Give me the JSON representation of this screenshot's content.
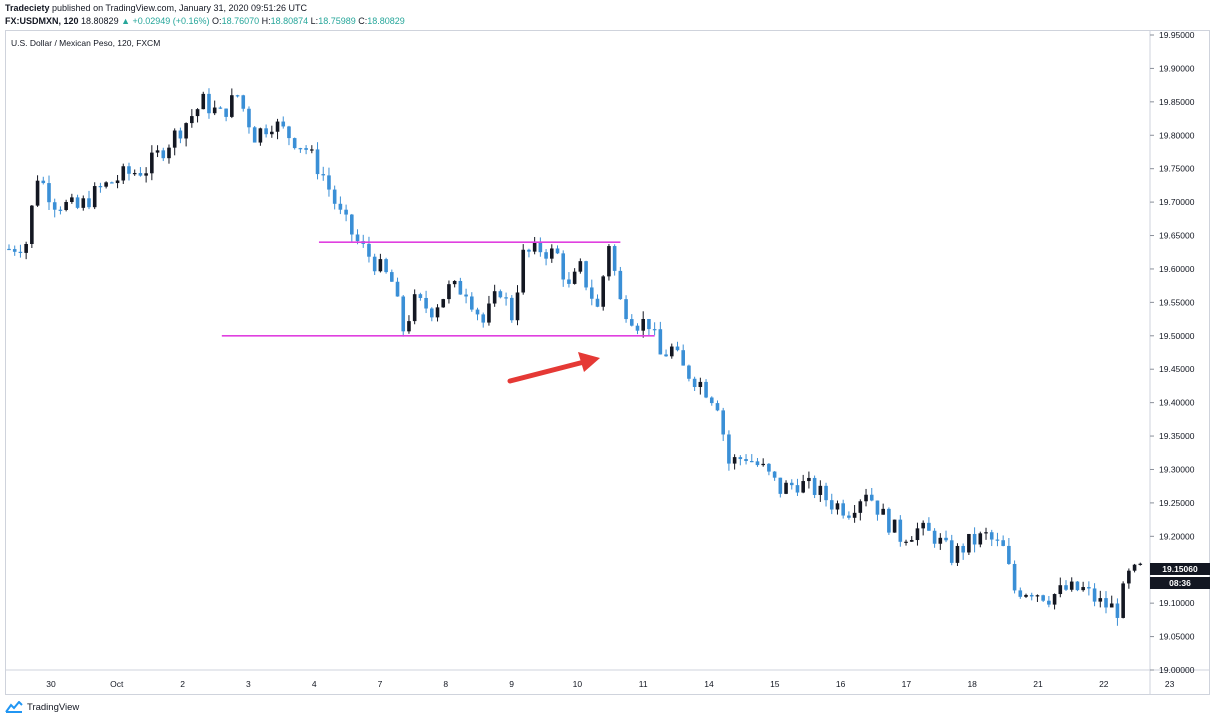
{
  "header": {
    "author": "Tradeciety",
    "published": " published on TradingView.com, January 31, 2020 09:51:26 UTC",
    "symbol": "FX:USDMXN, 120",
    "last": " 18.80829 ",
    "change": "▲ +0.02949 (+0.16%)",
    "o_label": " O:",
    "o_value": "18.76070",
    "h_label": " H:",
    "h_value": "18.80874",
    "l_label": " L:",
    "l_value": "18.75989",
    "c_label": " C:",
    "c_value": "18.80829"
  },
  "legend": "U.S. Dollar / Mexican Peso, 120, FXCM",
  "price_label": "19.15060",
  "countdown_label": "08:36",
  "footer": {
    "brand": "TradingView",
    "logo_icon": "tradingview-logo-icon"
  },
  "colors": {
    "up": "#131722",
    "down": "#3a8fd6",
    "level_line": "#e040e0",
    "arrow": "#e53935",
    "axis_text": "#131722",
    "border": "#cfd3dc"
  },
  "chart_data": {
    "type": "candlestick",
    "title": "U.S. Dollar / Mexican Peso, 120, FXCM",
    "ylim": [
      19.0,
      19.96
    ],
    "y_ticks": [
      "19.95000",
      "19.90000",
      "19.85000",
      "19.80000",
      "19.75000",
      "19.70000",
      "19.65000",
      "19.60000",
      "19.55000",
      "19.50000",
      "19.45000",
      "19.40000",
      "19.35000",
      "19.30000",
      "19.25000",
      "19.20000",
      "19.15000",
      "19.10000",
      "19.05000",
      "19.00000"
    ],
    "x_ticks": [
      "30",
      "Oct",
      "2",
      "3",
      "4",
      "7",
      "8",
      "9",
      "10",
      "11",
      "14",
      "15",
      "16",
      "17",
      "18",
      "21",
      "22",
      "23"
    ],
    "close_path": [
      [
        0,
        19.63
      ],
      [
        3,
        19.64
      ],
      [
        5,
        19.74
      ],
      [
        8,
        19.7
      ],
      [
        12,
        19.69
      ],
      [
        16,
        19.72
      ],
      [
        20,
        19.74
      ],
      [
        24,
        19.75
      ],
      [
        28,
        19.79
      ],
      [
        31,
        19.82
      ],
      [
        34,
        19.85
      ],
      [
        37,
        19.83
      ],
      [
        40,
        19.86
      ],
      [
        43,
        19.8
      ],
      [
        46,
        19.82
      ],
      [
        49,
        19.8
      ],
      [
        52,
        19.78
      ],
      [
        55,
        19.74
      ],
      [
        58,
        19.68
      ],
      [
        61,
        19.64
      ],
      [
        64,
        19.61
      ],
      [
        67,
        19.58
      ],
      [
        69,
        19.51
      ],
      [
        71,
        19.55
      ],
      [
        74,
        19.54
      ],
      [
        77,
        19.57
      ],
      [
        80,
        19.57
      ],
      [
        83,
        19.52
      ],
      [
        86,
        19.57
      ],
      [
        88,
        19.53
      ],
      [
        90,
        19.62
      ],
      [
        93,
        19.63
      ],
      [
        96,
        19.62
      ],
      [
        98,
        19.57
      ],
      [
        100,
        19.6
      ],
      [
        103,
        19.54
      ],
      [
        105,
        19.64
      ],
      [
        107,
        19.55
      ],
      [
        110,
        19.52
      ],
      [
        112,
        19.52
      ],
      [
        114,
        19.47
      ],
      [
        116,
        19.48
      ],
      [
        118,
        19.45
      ],
      [
        121,
        19.43
      ],
      [
        124,
        19.4
      ],
      [
        126,
        19.31
      ],
      [
        129,
        19.32
      ],
      [
        132,
        19.3
      ],
      [
        135,
        19.27
      ],
      [
        138,
        19.28
      ],
      [
        141,
        19.27
      ],
      [
        144,
        19.25
      ],
      [
        147,
        19.24
      ],
      [
        150,
        19.27
      ],
      [
        153,
        19.23
      ],
      [
        156,
        19.2
      ],
      [
        159,
        19.21
      ],
      [
        162,
        19.2
      ],
      [
        165,
        19.17
      ],
      [
        168,
        19.19
      ],
      [
        171,
        19.2
      ],
      [
        174,
        19.18
      ],
      [
        176,
        19.12
      ],
      [
        179,
        19.12
      ],
      [
        182,
        19.11
      ],
      [
        185,
        19.12
      ],
      [
        188,
        19.12
      ],
      [
        191,
        19.1
      ],
      [
        194,
        19.09
      ],
      [
        196,
        19.14
      ],
      [
        198,
        19.15
      ]
    ],
    "horizontal_levels": [
      {
        "price": 19.64,
        "from_index": 63,
        "to_index": 100
      },
      {
        "price": 19.5,
        "from_index": 46,
        "to_index": 106
      }
    ],
    "annotation": "arrow pointing to breakdown candle",
    "last_price": 19.1506
  }
}
